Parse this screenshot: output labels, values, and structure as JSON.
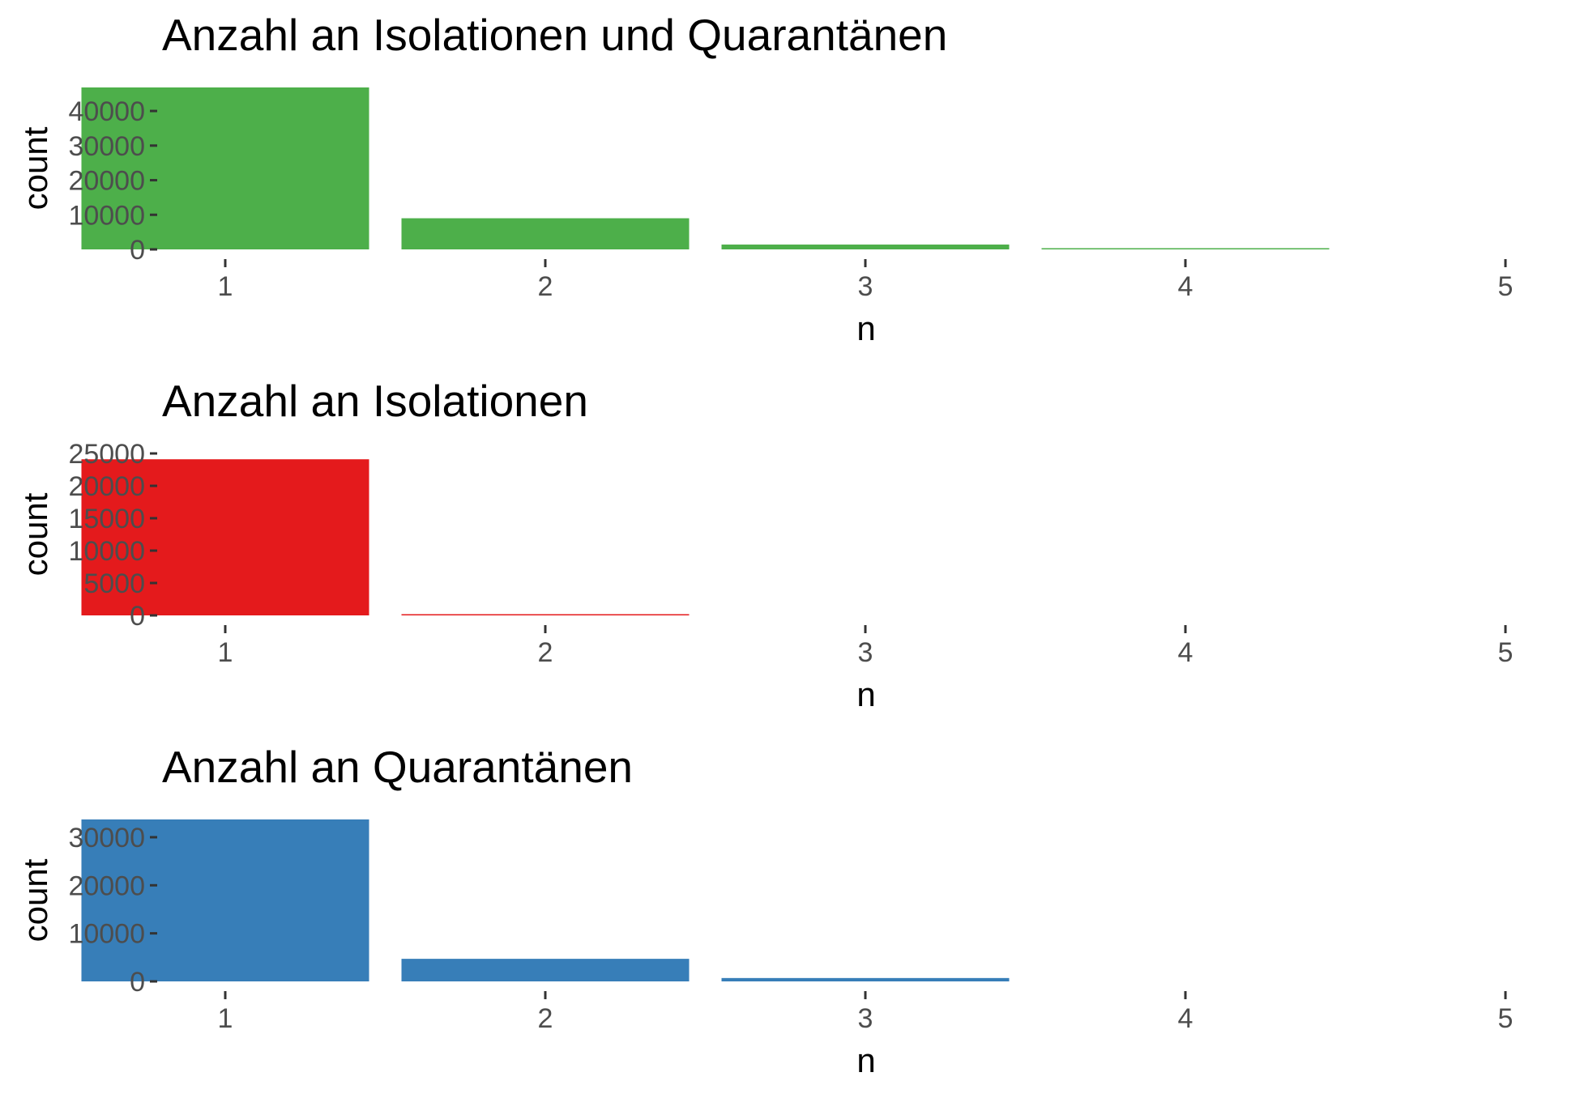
{
  "chart_data": [
    {
      "type": "bar",
      "title": "Anzahl an Isolationen und Quarantänen",
      "xlabel": "n",
      "ylabel": "count",
      "categories": [
        "1",
        "2",
        "3",
        "4",
        "5"
      ],
      "values": [
        46800,
        9000,
        1400,
        250,
        0
      ],
      "ylim": [
        0,
        46800
      ],
      "yticks": [
        0,
        10000,
        20000,
        30000,
        40000
      ],
      "color": "#4daf4a",
      "grid": false
    },
    {
      "type": "bar",
      "title": "Anzahl an Isolationen",
      "xlabel": "n",
      "ylabel": "count",
      "categories": [
        "1",
        "2",
        "3",
        "4",
        "5"
      ],
      "values": [
        24100,
        150,
        0,
        0,
        0
      ],
      "ylim": [
        0,
        25000
      ],
      "yticks": [
        0,
        5000,
        10000,
        15000,
        20000,
        25000
      ],
      "color": "#e41a1c",
      "grid": false
    },
    {
      "type": "bar",
      "title": "Anzahl an Quarantänen",
      "xlabel": "n",
      "ylabel": "count",
      "categories": [
        "1",
        "2",
        "3",
        "4",
        "5"
      ],
      "values": [
        33700,
        4700,
        700,
        0,
        0
      ],
      "ylim": [
        0,
        33700
      ],
      "yticks": [
        0,
        10000,
        20000,
        30000
      ],
      "color": "#377eb8",
      "grid": false
    }
  ]
}
